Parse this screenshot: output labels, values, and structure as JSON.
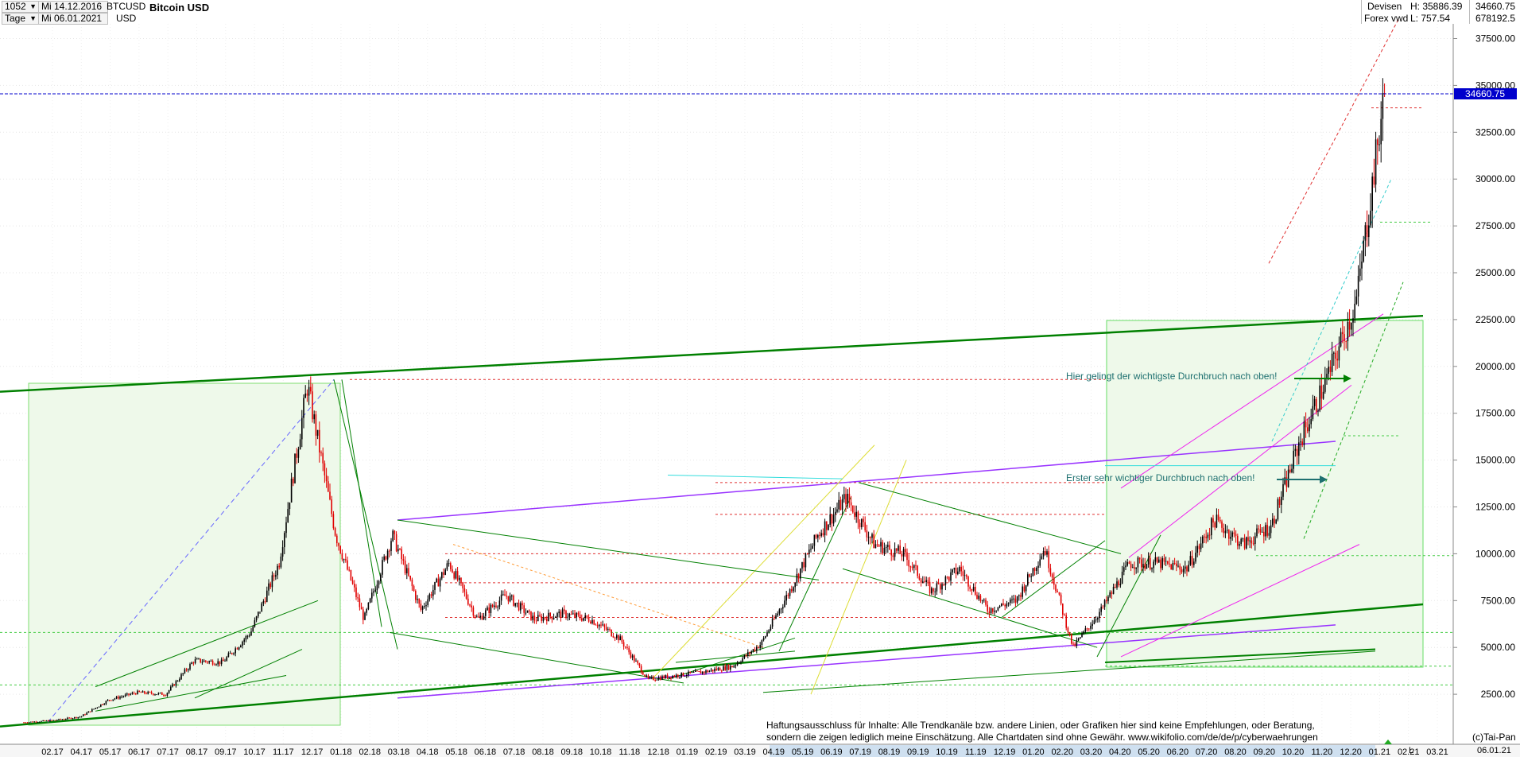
{
  "header": {
    "count": "1052",
    "interval": "Tage",
    "date_from": "Mi 14.12.2016",
    "date_to": "Mi 06.01.2021",
    "symbol": "BTCUSD",
    "currency": "USD",
    "title": "Bitcoin USD",
    "category": "Devisen",
    "source": "Forex vwd",
    "high_label": "H: 35886.39",
    "low_label": "L: 757.54",
    "last_value": "34660.75",
    "volume": "678192.5"
  },
  "annotations": {
    "breakout_main": "Hier gelingt der wichtigste Durchbruch nach oben!",
    "breakout_first": "Erster sehr wichtiger Durchbruch nach oben!"
  },
  "disclaimer": {
    "line1": "Haftungsausschluss für Inhalte: Alle Trendkanäle bzw. andere Linien, oder Grafiken hier sind keine Empfehlungen, oder Beratung,",
    "line2": "sondern die zeigen lediglich meine  Einschätzung. Alle Chartdaten sind ohne Gewähr.  www.wikifolio.com/de/de/p/cyberwaehrungen"
  },
  "footer": {
    "copyright": "(c)Tai-Pan",
    "scale_mode": "L",
    "current_date": "06.01.21"
  },
  "colors": {
    "up": "#000000",
    "down": "#e00000",
    "trend_main": "#008000",
    "channel_purple": "#9933ff",
    "channel_magenta": "#ee22ee",
    "annotation_text": "#1e7070",
    "price_marker_bg": "#0000cc",
    "zone_fill": "#eaf8e6",
    "zone_border": "#66dd66"
  },
  "chart_data": {
    "type": "candlestick",
    "title": "Bitcoin USD",
    "y_axis_side": "right",
    "ylim": [
      0,
      38750
    ],
    "y_ticks": [
      2500,
      5000,
      7500,
      10000,
      12500,
      15000,
      17500,
      20000,
      22500,
      25000,
      27500,
      30000,
      32500,
      35000,
      37500
    ],
    "y_tick_labels": [
      "2500.00",
      "5000.00",
      "7500.00",
      "10000.00",
      "12500.00",
      "15000.00",
      "17500.00",
      "20000.00",
      "22500.00",
      "25000.00",
      "27500.00",
      "30000.00",
      "32500.00",
      "35000.00",
      "37500.00"
    ],
    "x_tick_labels": [
      "02.17",
      "04.17",
      "05.17",
      "06.17",
      "07.17",
      "08.17",
      "09.17",
      "10.17",
      "11.17",
      "12.17",
      "01.18",
      "02.18",
      "03.18",
      "04.18",
      "05.18",
      "06.18",
      "07.18",
      "08.18",
      "09.18",
      "10.18",
      "11.18",
      "12.18",
      "01.19",
      "02.19",
      "03.19",
      "04.19",
      "05.19",
      "06.19",
      "07.19",
      "08.19",
      "09.19",
      "10.19",
      "11.19",
      "12.19",
      "01.20",
      "02.20",
      "03.20",
      "04.20",
      "05.20",
      "06.20",
      "07.20",
      "08.20",
      "09.20",
      "10.20",
      "11.20",
      "12.20",
      "01.21",
      "02.21",
      "03.21"
    ],
    "current_price": 34660.75,
    "high": 35886.39,
    "low": 757.54,
    "grid": true,
    "price_path": [
      [
        "01.17",
        1000
      ],
      [
        "03.17",
        1100
      ],
      [
        "04.17",
        1300
      ],
      [
        "05.17",
        2200
      ],
      [
        "06.17",
        2600
      ],
      [
        "07.17",
        2500
      ],
      [
        "08.17",
        4300
      ],
      [
        "09.17",
        4200
      ],
      [
        "10.17",
        5800
      ],
      [
        "11.17",
        9500
      ],
      [
        "12.17",
        19000
      ],
      [
        "01.18",
        11000
      ],
      [
        "02.18",
        6500
      ],
      [
        "03.18",
        11000
      ],
      [
        "04.18",
        7000
      ],
      [
        "05.18",
        9500
      ],
      [
        "06.18",
        6500
      ],
      [
        "07.18",
        7800
      ],
      [
        "08.18",
        6500
      ],
      [
        "09.18",
        6800
      ],
      [
        "10.18",
        6500
      ],
      [
        "11.18",
        5500
      ],
      [
        "12.18",
        3300
      ],
      [
        "01.19",
        3500
      ],
      [
        "02.19",
        3700
      ],
      [
        "03.19",
        4000
      ],
      [
        "04.19",
        5200
      ],
      [
        "05.19",
        8000
      ],
      [
        "06.19",
        11000
      ],
      [
        "07.19",
        13000
      ],
      [
        "08.19",
        10500
      ],
      [
        "09.19",
        10000
      ],
      [
        "10.19",
        8000
      ],
      [
        "11.19",
        9200
      ],
      [
        "12.19",
        7000
      ],
      [
        "01.20",
        7500
      ],
      [
        "02.20",
        10300
      ],
      [
        "03.20",
        5000
      ],
      [
        "04.20",
        7000
      ],
      [
        "05.20",
        9500
      ],
      [
        "06.20",
        9500
      ],
      [
        "07.20",
        9200
      ],
      [
        "08.20",
        11800
      ],
      [
        "09.20",
        10500
      ],
      [
        "10.20",
        11500
      ],
      [
        "11.20",
        16000
      ],
      [
        "12.20",
        19500
      ],
      [
        "12.20b",
        23500
      ],
      [
        "01.21",
        34660.75
      ]
    ]
  }
}
